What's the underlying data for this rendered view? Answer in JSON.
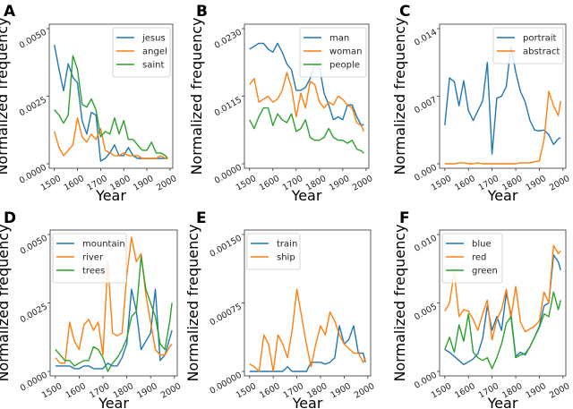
{
  "chart_data": [
    {
      "panel": "A",
      "type": "line",
      "xlabel": "Year",
      "ylabel": "Normalized frequency",
      "xlim": [
        1478,
        2012
      ],
      "ylim": [
        0,
        0.005
      ],
      "xticks": [
        "1500",
        "1600",
        "1700",
        "1800",
        "1900",
        "2000"
      ],
      "yticks": [
        "0.0000",
        "0.0025",
        "0.0050"
      ],
      "grid": false,
      "legend": "top-right",
      "x": [
        1500,
        1520,
        1540,
        1560,
        1580,
        1600,
        1620,
        1640,
        1660,
        1680,
        1700,
        1720,
        1740,
        1760,
        1780,
        1800,
        1820,
        1840,
        1860,
        1880,
        1900,
        1920,
        1940,
        1960,
        1980,
        1990
      ],
      "series": [
        {
          "name": "jesus",
          "color": "#1f77b4",
          "values": [
            0.0044,
            0.0035,
            0.0027,
            0.0037,
            0.0032,
            0.003,
            0.0016,
            0.0011,
            0.0019,
            0.0018,
            0.0001,
            0.0002,
            0.0004,
            0.0007,
            0.0003,
            0.0003,
            0.0006,
            0.0003,
            0.0002,
            0.0002,
            0.0002,
            0.0002,
            0.0002,
            0.0002,
            0.0002,
            0.0002
          ]
        },
        {
          "name": "angel",
          "color": "#ff7f0e",
          "values": [
            0.0012,
            0.0006,
            0.0003,
            0.0005,
            0.0007,
            0.0017,
            0.001,
            0.0008,
            0.0011,
            0.0009,
            0.0013,
            0.0005,
            0.0004,
            0.0003,
            0.0003,
            0.0004,
            0.0003,
            0.0003,
            0.0003,
            0.0002,
            0.0002,
            0.0002,
            0.0002,
            0.0003,
            0.0002,
            0.0002
          ]
        },
        {
          "name": "saint",
          "color": "#2ca02c",
          "values": [
            0.002,
            0.0018,
            0.0015,
            0.0018,
            0.004,
            0.0035,
            0.0022,
            0.0021,
            0.0024,
            0.002,
            0.001,
            0.0012,
            0.0011,
            0.0017,
            0.0011,
            0.0016,
            0.0009,
            0.0009,
            0.0007,
            0.0005,
            0.0005,
            0.0008,
            0.0004,
            0.0004,
            0.0003,
            0.0002
          ]
        }
      ]
    },
    {
      "panel": "B",
      "type": "line",
      "xlabel": "Year",
      "ylabel": "Normalized frequency",
      "xlim": [
        1478,
        2012
      ],
      "ylim": [
        0,
        0.023
      ],
      "xticks": [
        "1500",
        "1600",
        "1700",
        "1800",
        "1900",
        "2000"
      ],
      "yticks": [
        "0.0000",
        "0.0115",
        "0.0230"
      ],
      "grid": false,
      "legend": "top-right",
      "x": [
        1500,
        1520,
        1540,
        1560,
        1580,
        1600,
        1620,
        1640,
        1660,
        1680,
        1700,
        1720,
        1740,
        1760,
        1780,
        1800,
        1820,
        1840,
        1860,
        1880,
        1900,
        1920,
        1940,
        1960,
        1980,
        1990
      ],
      "series": [
        {
          "name": "man",
          "color": "#1f77b4",
          "values": [
            0.0195,
            0.02,
            0.0205,
            0.0205,
            0.0195,
            0.019,
            0.0205,
            0.019,
            0.017,
            0.016,
            0.0125,
            0.0125,
            0.013,
            0.0145,
            0.017,
            0.0165,
            0.012,
            0.01,
            0.0075,
            0.008,
            0.0075,
            0.01,
            0.01,
            0.008,
            0.0065,
            0.0067
          ]
        },
        {
          "name": "woman",
          "color": "#ff7f0e",
          "values": [
            0.0135,
            0.0145,
            0.0105,
            0.011,
            0.0115,
            0.0105,
            0.011,
            0.0125,
            0.0155,
            0.013,
            0.008,
            0.012,
            0.0095,
            0.014,
            0.0135,
            0.0105,
            0.0095,
            0.0105,
            0.01,
            0.0115,
            0.011,
            0.01,
            0.0095,
            0.007,
            0.0065,
            0.0055
          ]
        },
        {
          "name": "people",
          "color": "#2ca02c",
          "values": [
            0.0075,
            0.006,
            0.008,
            0.0095,
            0.0095,
            0.0065,
            0.0085,
            0.0075,
            0.007,
            0.0085,
            0.0055,
            0.006,
            0.0075,
            0.0045,
            0.004,
            0.004,
            0.0045,
            0.006,
            0.0045,
            0.004,
            0.004,
            0.0035,
            0.004,
            0.0025,
            0.0022,
            0.0018
          ]
        }
      ]
    },
    {
      "panel": "C",
      "type": "line",
      "xlabel": "Year",
      "ylabel": "Normalized frequency",
      "xlim": [
        1478,
        2012
      ],
      "ylim": [
        0,
        0.014
      ],
      "xticks": [
        "1500",
        "1600",
        "1700",
        "1800",
        "1900",
        "2000"
      ],
      "yticks": [
        "0.000",
        "0.007",
        "0.014"
      ],
      "grid": false,
      "legend": "top-right",
      "x": [
        1500,
        1520,
        1540,
        1560,
        1580,
        1600,
        1620,
        1640,
        1660,
        1680,
        1700,
        1720,
        1740,
        1760,
        1780,
        1800,
        1820,
        1840,
        1860,
        1880,
        1900,
        1920,
        1940,
        1960,
        1980,
        1990
      ],
      "series": [
        {
          "name": "portrait",
          "color": "#1f77b4",
          "values": [
            0.004,
            0.0089,
            0.0085,
            0.006,
            0.0086,
            0.0055,
            0.0045,
            0.0055,
            0.0065,
            0.0105,
            0.001,
            0.0068,
            0.007,
            0.008,
            0.0122,
            0.0095,
            0.0075,
            0.0064,
            0.0045,
            0.0035,
            0.0034,
            0.0035,
            0.003,
            0.002,
            0.0026,
            0.0027
          ]
        },
        {
          "name": "abstract",
          "color": "#ff7f0e",
          "values": [
            0,
            0,
            0,
            0.0001,
            0.0001,
            0,
            0,
            0.0001,
            0,
            0,
            0,
            0,
            0,
            0,
            0,
            0,
            0.0001,
            0.0001,
            0.0001,
            0.0002,
            0.0003,
            0.0025,
            0.0075,
            0.006,
            0.005,
            0.0065
          ]
        }
      ]
    },
    {
      "panel": "D",
      "type": "line",
      "xlabel": "Year",
      "ylabel": "Normalized frequency",
      "xlim": [
        1478,
        2012
      ],
      "ylim": [
        0,
        0.005
      ],
      "xticks": [
        "1500",
        "1600",
        "1700",
        "1800",
        "1900",
        "2000"
      ],
      "yticks": [
        "0.0000",
        "0.0025",
        "0.0050"
      ],
      "grid": false,
      "legend": "top-left",
      "x": [
        1500,
        1520,
        1540,
        1560,
        1580,
        1600,
        1620,
        1640,
        1660,
        1680,
        1700,
        1720,
        1740,
        1760,
        1780,
        1800,
        1820,
        1840,
        1860,
        1880,
        1900,
        1920,
        1940,
        1960,
        1980,
        1990
      ],
      "series": [
        {
          "name": "mountain",
          "color": "#1f77b4",
          "values": [
            0.0002,
            0.0002,
            0.0002,
            0.0002,
            0.0001,
            0.0001,
            0.0002,
            0.0002,
            0.0001,
            0.0001,
            0.0001,
            0.0003,
            0.0002,
            0.0002,
            0.0005,
            0.001,
            0.003,
            0.0022,
            0.0008,
            0.0011,
            0.0014,
            0.003,
            0.0004,
            0.0006,
            0.0012,
            0.0015
          ]
        },
        {
          "name": "river",
          "color": "#ff7f0e",
          "values": [
            0.0005,
            0.0003,
            0.0003,
            0.0018,
            0.0011,
            0.0008,
            0.0017,
            0.0019,
            0.0015,
            0.0018,
            0.0006,
            0.004,
            0.0014,
            0.0013,
            0.0014,
            0.0035,
            0.0049,
            0.004,
            0.0043,
            0.0028,
            0.0018,
            0.0008,
            0.0006,
            0.0006,
            0.0009,
            0.001
          ]
        },
        {
          "name": "trees",
          "color": "#2ca02c",
          "values": [
            0.0008,
            0.0006,
            0.0004,
            0.0004,
            0.0002,
            0.0003,
            0.0004,
            0.0004,
            0.0009,
            0.0008,
            0.0005,
            0.0,
            0.0003,
            0.0005,
            0.0008,
            0.0012,
            0.002,
            0.0022,
            0.0042,
            0.003,
            0.0025,
            0.002,
            0.001,
            0.0008,
            0.0018,
            0.0025
          ]
        }
      ]
    },
    {
      "panel": "E",
      "type": "line",
      "xlabel": "Year",
      "ylabel": "Normalized frequency",
      "xlim": [
        1478,
        2012
      ],
      "ylim": [
        0,
        0.0015
      ],
      "xticks": [
        "1500",
        "1600",
        "1700",
        "1800",
        "1900",
        "2000"
      ],
      "yticks": [
        "0.00000",
        "0.00075",
        "0.00150"
      ],
      "grid": false,
      "legend": "top-left",
      "x": [
        1500,
        1520,
        1540,
        1560,
        1580,
        1600,
        1620,
        1640,
        1660,
        1680,
        1700,
        1720,
        1740,
        1760,
        1780,
        1800,
        1820,
        1840,
        1860,
        1880,
        1900,
        1920,
        1940,
        1960,
        1980,
        1990
      ],
      "series": [
        {
          "name": "train",
          "color": "#1f77b4",
          "values": [
            0,
            0,
            0,
            0,
            0,
            0,
            0,
            0,
            5e-05,
            0,
            0,
            0,
            0,
            0.0001,
            0.0001,
            0.0001,
            8e-05,
            0.0001,
            0.00015,
            0.0005,
            0.0003,
            0.00035,
            0.0005,
            0.0002,
            0.0002,
            0.0001
          ]
        },
        {
          "name": "ship",
          "color": "#ff7f0e",
          "values": [
            8e-05,
            5e-05,
            0,
            0.0004,
            0.0003,
            0,
            0.0004,
            0.0003,
            0.00015,
            0.00045,
            0.0009,
            0.0006,
            0.0003,
            5e-05,
            0.0003,
            0.0005,
            0.0004,
            0.00065,
            0.00055,
            0.0004,
            0.0003,
            0.00025,
            0.0002,
            0.0002,
            0.0001,
            0.00015
          ]
        }
      ]
    },
    {
      "panel": "F",
      "type": "line",
      "xlabel": "Year",
      "ylabel": "Normalized frequency",
      "xlim": [
        1478,
        2012
      ],
      "ylim": [
        0,
        0.01
      ],
      "xticks": [
        "1500",
        "1600",
        "1700",
        "1800",
        "1900",
        "2000"
      ],
      "yticks": [
        "0.000",
        "0.005",
        "0.010"
      ],
      "grid": false,
      "legend": "top-left",
      "x": [
        1500,
        1520,
        1540,
        1560,
        1580,
        1600,
        1620,
        1640,
        1660,
        1680,
        1700,
        1720,
        1740,
        1760,
        1780,
        1800,
        1820,
        1840,
        1860,
        1880,
        1900,
        1920,
        1940,
        1960,
        1980,
        1990
      ],
      "series": [
        {
          "name": "blue",
          "color": "#1f77b4",
          "values": [
            0.0016,
            0.0014,
            0.0011,
            0.0008,
            0.0005,
            0.0007,
            0.0009,
            0.0013,
            0.0024,
            0.0048,
            0.003,
            0.004,
            0.003,
            0.0057,
            0.0042,
            0.0011,
            0.0014,
            0.0012,
            0.0018,
            0.0025,
            0.0033,
            0.0048,
            0.005,
            0.0085,
            0.008,
            0.0074
          ]
        },
        {
          "name": "red",
          "color": "#ff7f0e",
          "values": [
            0.0044,
            0.005,
            0.0072,
            0.004,
            0.0045,
            0.0044,
            0.0038,
            0.003,
            0.0042,
            0.0052,
            0.0023,
            0.0038,
            0.0045,
            0.006,
            0.0039,
            0.0062,
            0.0036,
            0.0029,
            0.0031,
            0.0033,
            0.0037,
            0.0058,
            0.005,
            0.0092,
            0.0086,
            0.0088
          ]
        },
        {
          "name": "green",
          "color": "#2ca02c",
          "values": [
            0.0016,
            0.0025,
            0.0014,
            0.0034,
            0.0022,
            0.0042,
            0.0014,
            0.001,
            0.0008,
            0.001,
            0.0002,
            0.001,
            0.002,
            0.0035,
            0.004,
            0.001,
            0.0012,
            0.0013,
            0.0018,
            0.0025,
            0.0032,
            0.0042,
            0.004,
            0.0058,
            0.0045,
            0.0052
          ]
        }
      ]
    }
  ]
}
